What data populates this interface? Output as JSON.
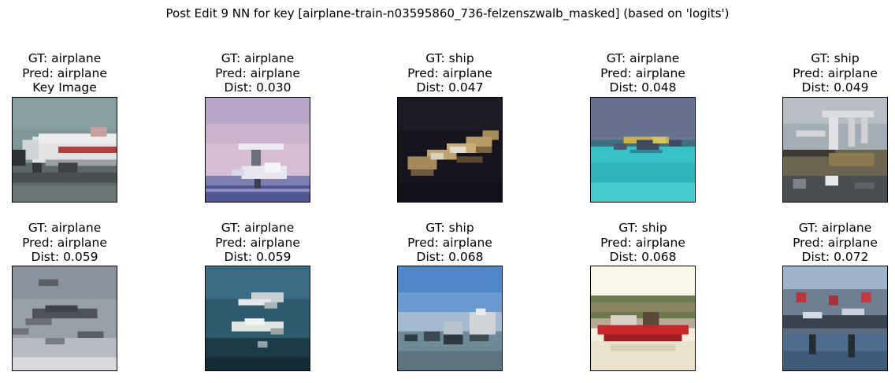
{
  "figure": {
    "suptitle": "Post Edit 9 NN for key [airplane-train-n03595860_736-felzenszwalb_masked] (based on 'logits')"
  },
  "panels": [
    {
      "gt": "GT: airplane",
      "pred": "Pred: airplane",
      "extra": "Key Image",
      "image": "airplane-on-runway"
    },
    {
      "gt": "GT: airplane",
      "pred": "Pred: airplane",
      "extra": "Dist: 0.030",
      "image": "jet-pink-sky"
    },
    {
      "gt": "GT: ship",
      "pred": "Pred: airplane",
      "extra": "Dist: 0.047",
      "image": "wooden-boat-dark"
    },
    {
      "gt": "GT: airplane",
      "pred": "Pred: airplane",
      "extra": "Dist: 0.048",
      "image": "seaplane-on-water"
    },
    {
      "gt": "GT: ship",
      "pred": "Pred: airplane",
      "extra": "Dist: 0.049",
      "image": "crane-ship"
    },
    {
      "gt": "GT: airplane",
      "pred": "Pred: airplane",
      "extra": "Dist: 0.059",
      "image": "jets-in-clouds"
    },
    {
      "gt": "GT: airplane",
      "pred": "Pred: airplane",
      "extra": "Dist: 0.059",
      "image": "jets-over-sea"
    },
    {
      "gt": "GT: ship",
      "pred": "Pred: airplane",
      "extra": "Dist: 0.068",
      "image": "boats-blue-sky"
    },
    {
      "gt": "GT: ship",
      "pred": "Pred: airplane",
      "extra": "Dist: 0.068",
      "image": "red-boat"
    },
    {
      "gt": "GT: airplane",
      "pred": "Pred: airplane",
      "extra": "Dist: 0.072",
      "image": "harbor-docks"
    }
  ]
}
